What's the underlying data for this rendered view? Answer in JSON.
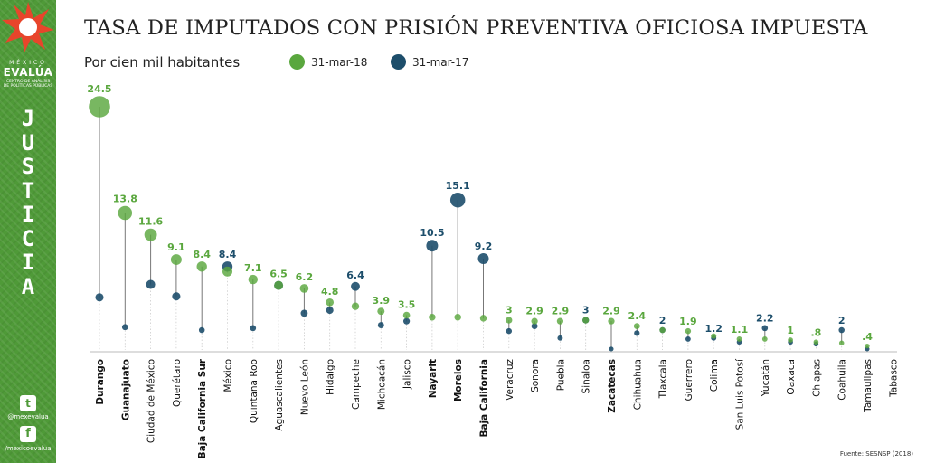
{
  "sidebar": {
    "logo_mexico": "MÉXICO",
    "logo_evalua": "EVALÚA",
    "logo_sub": "CENTRO DE ANÁLISIS DE POLÍTICAS PÚBLICAS",
    "section_word": "JUSTICIA",
    "twitter_handle": "@mexevalua",
    "facebook_handle": "/mexicoevalua",
    "twitter_icon": "twitter-icon",
    "facebook_icon": "facebook-icon"
  },
  "source": "Fuente: SESNSP (2018)",
  "colors": {
    "series_2018": "#5aa73e",
    "series_2017": "#1d4e6b",
    "sidebar_bg": "#4f9a38",
    "logo_star": "#e8452b"
  },
  "chart_data": {
    "type": "scatter",
    "title": "TASA DE IMPUTADOS CON PRISIÓN PREVENTIVA OFICIOSA IMPUESTA",
    "subtitle": "Por cien mil habitantes",
    "legend": [
      "31-mar-18",
      "31-mar-17"
    ],
    "legend_position": "top",
    "grid": false,
    "ylim": [
      0,
      25
    ],
    "categories": [
      "Durango",
      "Guanajuato",
      "Ciudad de México",
      "Querétaro",
      "Baja California Sur",
      "México",
      "Quintana Roo",
      "Aguascalientes",
      "Nuevo León",
      "Hidalgo",
      "Campeche",
      "Michoacán",
      "Jalisco",
      "Nayarit",
      "Morelos",
      "Baja California",
      "Veracruz",
      "Sonora",
      "Puebla",
      "Sinaloa",
      "Zacatecas",
      "Chihuahua",
      "Tlaxcala",
      "Guerrero",
      "Colima",
      "San Luis Potosí",
      "Yucatán",
      "Oaxaca",
      "Chiapas",
      "Coahuila",
      "Tamaulipas",
      "Tabasco"
    ],
    "bold_categories": [
      "Durango",
      "Guanajuato",
      "Baja California Sur",
      "Nayarit",
      "Morelos",
      "Baja California",
      "Zacatecas"
    ],
    "series": [
      {
        "name": "31-mar-18",
        "values": [
          24.5,
          13.8,
          11.6,
          9.1,
          8.4,
          7.9,
          7.1,
          6.5,
          6.2,
          4.8,
          4.4,
          3.9,
          3.5,
          3.3,
          3.3,
          3.2,
          3.0,
          2.9,
          2.9,
          3.0,
          2.9,
          2.4,
          2.0,
          1.9,
          1.4,
          1.1,
          1.1,
          1.0,
          0.8,
          0.7,
          0.4,
          0
        ]
      },
      {
        "name": "31-mar-17",
        "values": [
          5.3,
          2.3,
          6.6,
          5.4,
          2.0,
          8.4,
          2.2,
          6.5,
          3.7,
          4.0,
          6.4,
          2.5,
          2.9,
          10.5,
          15.1,
          9.2,
          1.9,
          2.4,
          1.2,
          3.0,
          0.1,
          1.7,
          2.0,
          1.1,
          1.2,
          0.8,
          2.2,
          0.8,
          0.6,
          2.0,
          0.1,
          0
        ]
      }
    ],
    "labels": [
      "24.5",
      "13.8",
      "11.6",
      "9.1",
      "8.4",
      "8.4",
      "7.1",
      "6.5",
      "6.2",
      "4.8",
      "6.4",
      "3.9",
      "3.5",
      "10.5",
      "15.1",
      "9.2",
      "3",
      "2.9",
      "2.9",
      "3",
      "2.9",
      "2.4",
      "2",
      "1.9",
      "1.2",
      "1.1",
      "2.2",
      "1",
      ".8",
      "2",
      ".4",
      ""
    ],
    "label_series": [
      "31-mar-18",
      "31-mar-18",
      "31-mar-18",
      "31-mar-18",
      "31-mar-18",
      "31-mar-17",
      "31-mar-18",
      "31-mar-18",
      "31-mar-18",
      "31-mar-18",
      "31-mar-17",
      "31-mar-18",
      "31-mar-18",
      "31-mar-17",
      "31-mar-17",
      "31-mar-17",
      "31-mar-18",
      "31-mar-18",
      "31-mar-18",
      "31-mar-17",
      "31-mar-18",
      "31-mar-18",
      "31-mar-17",
      "31-mar-18",
      "31-mar-17",
      "31-mar-18",
      "31-mar-17",
      "31-mar-18",
      "31-mar-18",
      "31-mar-17",
      "31-mar-18",
      "31-mar-18"
    ]
  }
}
